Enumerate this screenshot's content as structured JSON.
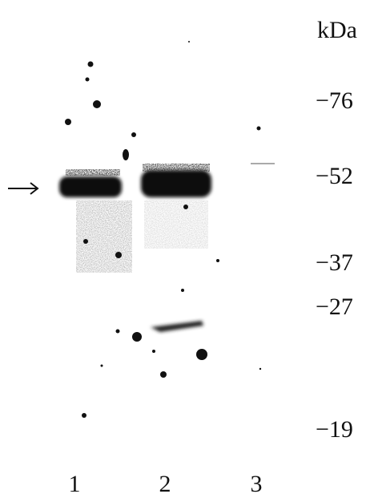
{
  "units_label": "kDa",
  "markers": [
    "−76",
    "−52",
    "−37",
    "−27",
    "−19"
  ],
  "lanes": [
    "1",
    "2",
    "3"
  ]
}
